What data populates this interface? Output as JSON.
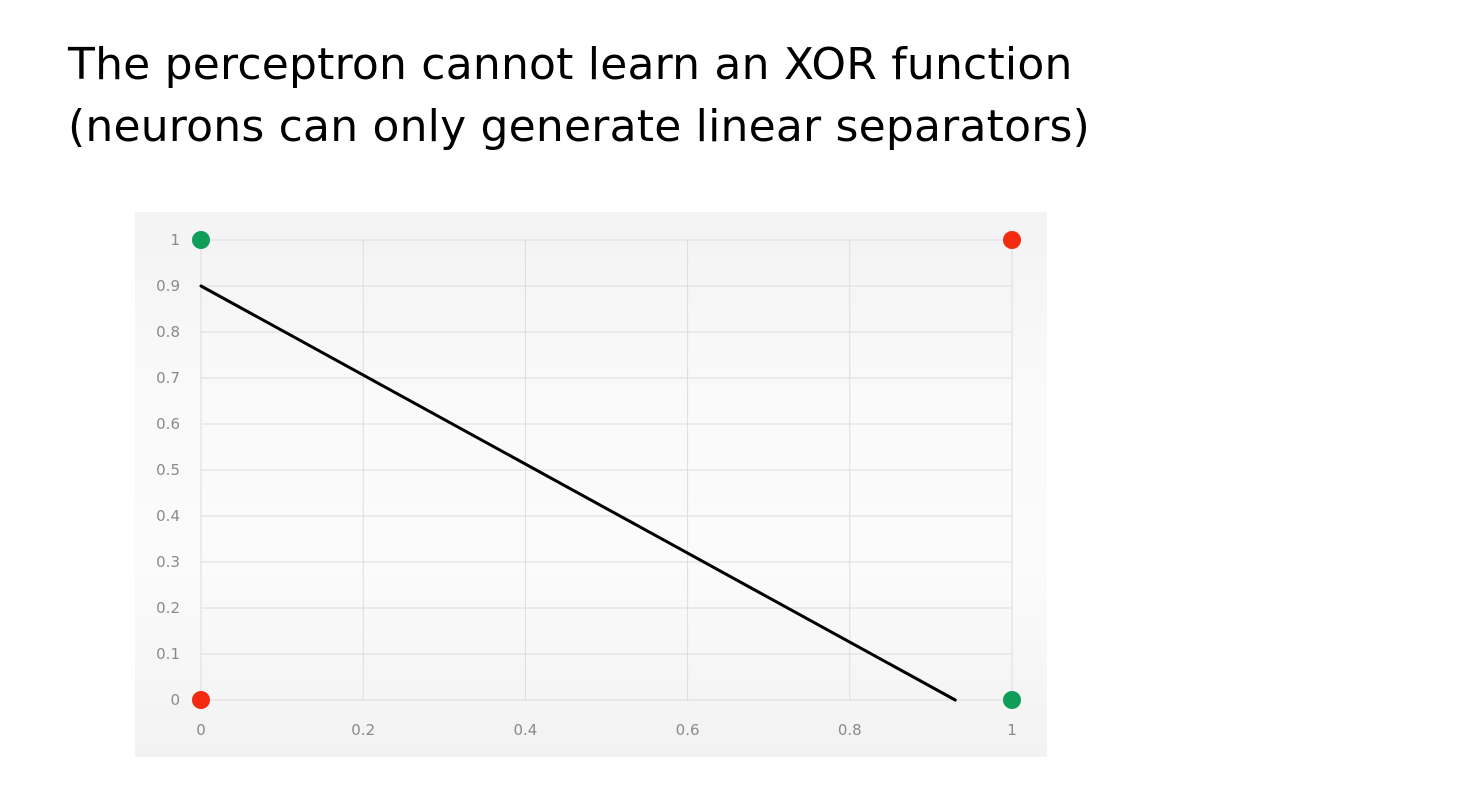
{
  "slide": {
    "title_line1": "The perceptron cannot learn an XOR function",
    "title_line2": "(neurons can only generate linear separators)"
  },
  "chart_data": {
    "type": "scatter",
    "xlim": [
      0,
      1
    ],
    "ylim": [
      0,
      1
    ],
    "x_ticks": [
      "0",
      "0.2",
      "0.4",
      "0.6",
      "0.8",
      "1"
    ],
    "y_ticks": [
      "0",
      "0.1",
      "0.2",
      "0.3",
      "0.4",
      "0.5",
      "0.6",
      "0.7",
      "0.8",
      "0.9",
      "1"
    ],
    "grid": true,
    "points": [
      {
        "x": 0,
        "y": 1,
        "color": "#0f9d58"
      },
      {
        "x": 1,
        "y": 1,
        "color": "#f22a10"
      },
      {
        "x": 0,
        "y": 0,
        "color": "#f22a10"
      },
      {
        "x": 1,
        "y": 0,
        "color": "#0f9d58"
      }
    ],
    "separator_line": {
      "x": [
        0,
        0.93
      ],
      "y": [
        0.9,
        0
      ],
      "color": "#000000"
    }
  }
}
